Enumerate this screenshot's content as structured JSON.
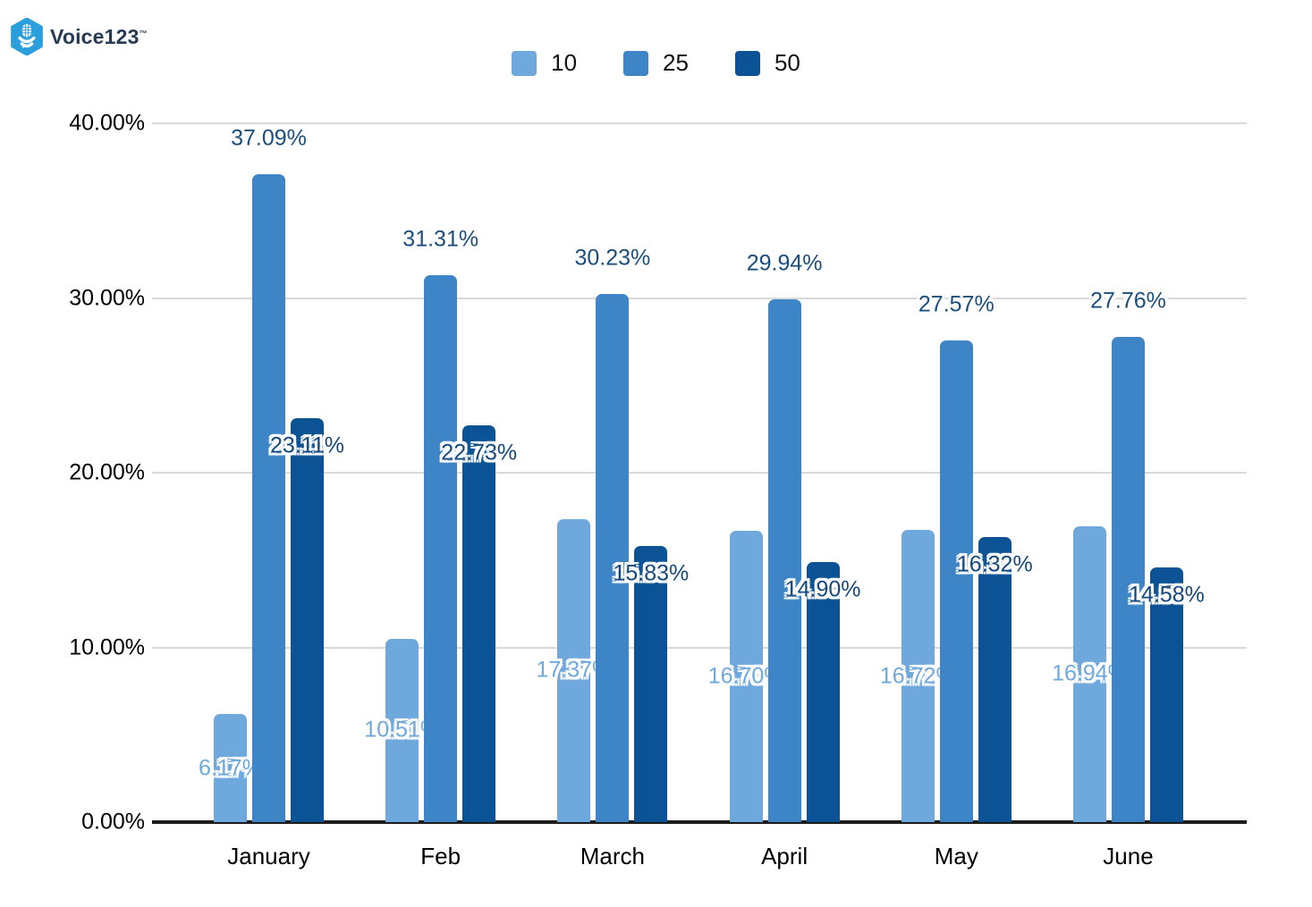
{
  "logo": {
    "brand": "Voice123",
    "trademark": "™",
    "hex_fill": "#2b9fdd",
    "text_color": "#243b53"
  },
  "legend": {
    "position": "top-center"
  },
  "chart_data": {
    "type": "bar",
    "title": "",
    "categories": [
      "January",
      "Feb",
      "March",
      "April",
      "May",
      "June"
    ],
    "series": [
      {
        "name": "10",
        "color": "#6fa8dc",
        "label_color": "#6fa8dc",
        "label_placement": "center",
        "values": [
          6.17,
          10.51,
          17.37,
          16.7,
          16.72,
          16.94
        ],
        "labels": [
          "6.17%",
          "10.51%",
          "17.37%",
          "16.70%",
          "16.72%",
          "16.94%"
        ]
      },
      {
        "name": "25",
        "color": "#3d85c6",
        "label_color": "#1c4e7d",
        "label_placement": "above",
        "values": [
          37.09,
          31.31,
          30.23,
          29.94,
          27.57,
          27.76
        ],
        "labels": [
          "37.09%",
          "31.31%",
          "30.23%",
          "29.94%",
          "27.57%",
          "27.76%"
        ]
      },
      {
        "name": "50",
        "color": "#0b5394",
        "label_color": "#15497e",
        "label_placement": "inside-top",
        "values": [
          23.11,
          22.73,
          15.83,
          14.9,
          16.32,
          14.58
        ],
        "labels": [
          "23.11%",
          "22.73%",
          "15.83%",
          "14.90%",
          "16.32%",
          "14.58%"
        ]
      }
    ],
    "y_ticks": [
      "0.00%",
      "10.00%",
      "20.00%",
      "30.00%",
      "40.00%"
    ],
    "ylim": [
      0,
      40
    ],
    "grid": true,
    "legend_position": "top",
    "xlabel": "",
    "ylabel": ""
  }
}
